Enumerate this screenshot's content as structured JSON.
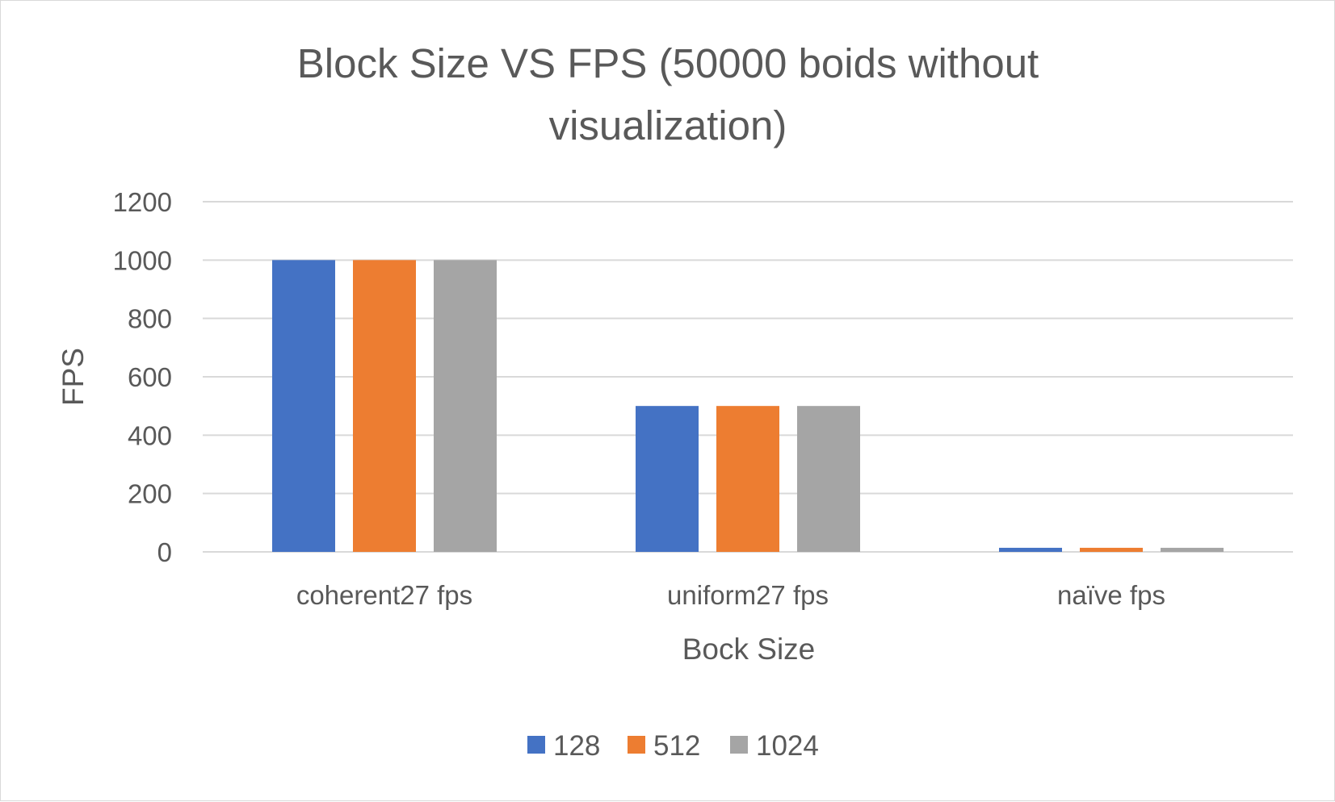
{
  "chart_data": {
    "type": "bar",
    "title_lines": [
      "Block Size VS FPS (50000 boids without",
      "visualization)"
    ],
    "xlabel": "Bock Size",
    "ylabel": "FPS",
    "categories": [
      "coherent27 fps",
      "uniform27 fps",
      "naïve fps"
    ],
    "series": [
      {
        "name": "128",
        "color": "#4472c4",
        "values": [
          1000,
          500,
          14
        ]
      },
      {
        "name": "512",
        "color": "#ed7d31",
        "values": [
          1000,
          500,
          14
        ]
      },
      {
        "name": "1024",
        "color": "#a5a5a5",
        "values": [
          1000,
          500,
          14
        ]
      }
    ],
    "ylim": [
      0,
      1200
    ],
    "yticks": [
      "0",
      "200",
      "400",
      "600",
      "800",
      "1000",
      "1200"
    ],
    "grid": true,
    "legend_position": "bottom"
  }
}
